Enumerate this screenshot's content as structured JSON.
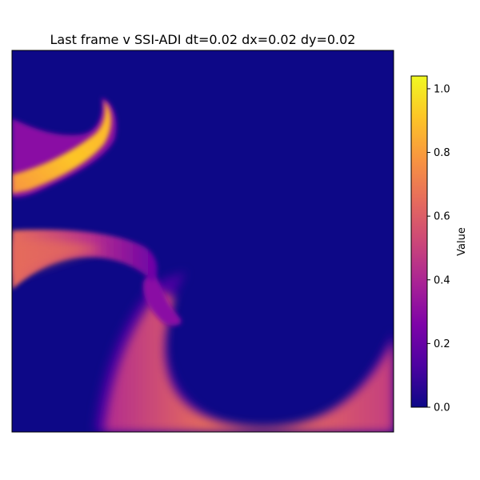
{
  "chart_data": {
    "type": "heatmap",
    "title": "Last frame v SSI-ADI dt=0.02 dx=0.02 dy=0.02",
    "colormap": "plasma",
    "xticks": false,
    "yticks": false,
    "colorbar": {
      "label": "Value",
      "range": [
        0,
        1.04
      ],
      "ticks": [
        0.0,
        0.2,
        0.4,
        0.6,
        0.8,
        1.0
      ],
      "tick_labels": [
        "0.0",
        "0.2",
        "0.4",
        "0.6",
        "0.8",
        "1.0"
      ]
    },
    "field_features": [
      {
        "name": "upper-left arm",
        "region": "top-left",
        "peak_value": 0.95
      },
      {
        "name": "middle-left arm",
        "region": "middle-left",
        "peak_value": 0.6
      },
      {
        "name": "lower spiral band",
        "region": "bottom",
        "peak_value": 0.65
      }
    ]
  }
}
